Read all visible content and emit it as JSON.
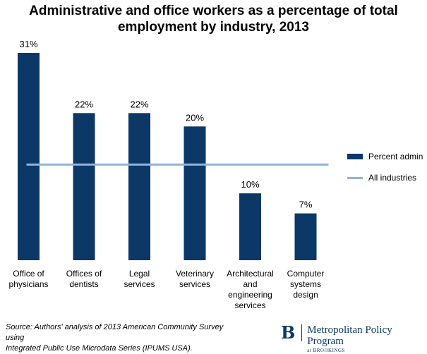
{
  "chart_data": {
    "type": "bar",
    "title_lines": [
      "Administrative and office workers as a percentage of total",
      "employment by industry, 2013"
    ],
    "categories": [
      [
        "Office of",
        "physicians"
      ],
      [
        "Offices of",
        "dentists"
      ],
      [
        "Legal",
        "services"
      ],
      [
        "Veterinary",
        "services"
      ],
      [
        "Architectural",
        "and",
        "engineering",
        "services"
      ],
      [
        "Computer",
        "systems",
        "design"
      ]
    ],
    "series": [
      {
        "name": "Percent admin",
        "values": [
          31,
          22,
          22,
          20,
          10,
          7
        ],
        "labels": [
          "31%",
          "22%",
          "22%",
          "20%",
          "10%",
          "7%"
        ],
        "color": "#0b3866"
      }
    ],
    "reference_line": {
      "name": "All industries",
      "value": 14.3,
      "color": "#93b3dc"
    },
    "ylim": [
      0,
      31
    ],
    "xlabel": "",
    "ylabel": "",
    "legend": {
      "placement": "right",
      "items": [
        "Percent admin",
        "All industries"
      ]
    }
  },
  "source": {
    "lines": [
      "Source: Authors' analysis of 2013 American Community Survey using",
      "Integrated Public Use Microdata Series (IPUMS USA)."
    ]
  },
  "logo": {
    "mark": "B",
    "name": "Metropolitan Policy Program",
    "sub": "at BROOKINGS"
  }
}
